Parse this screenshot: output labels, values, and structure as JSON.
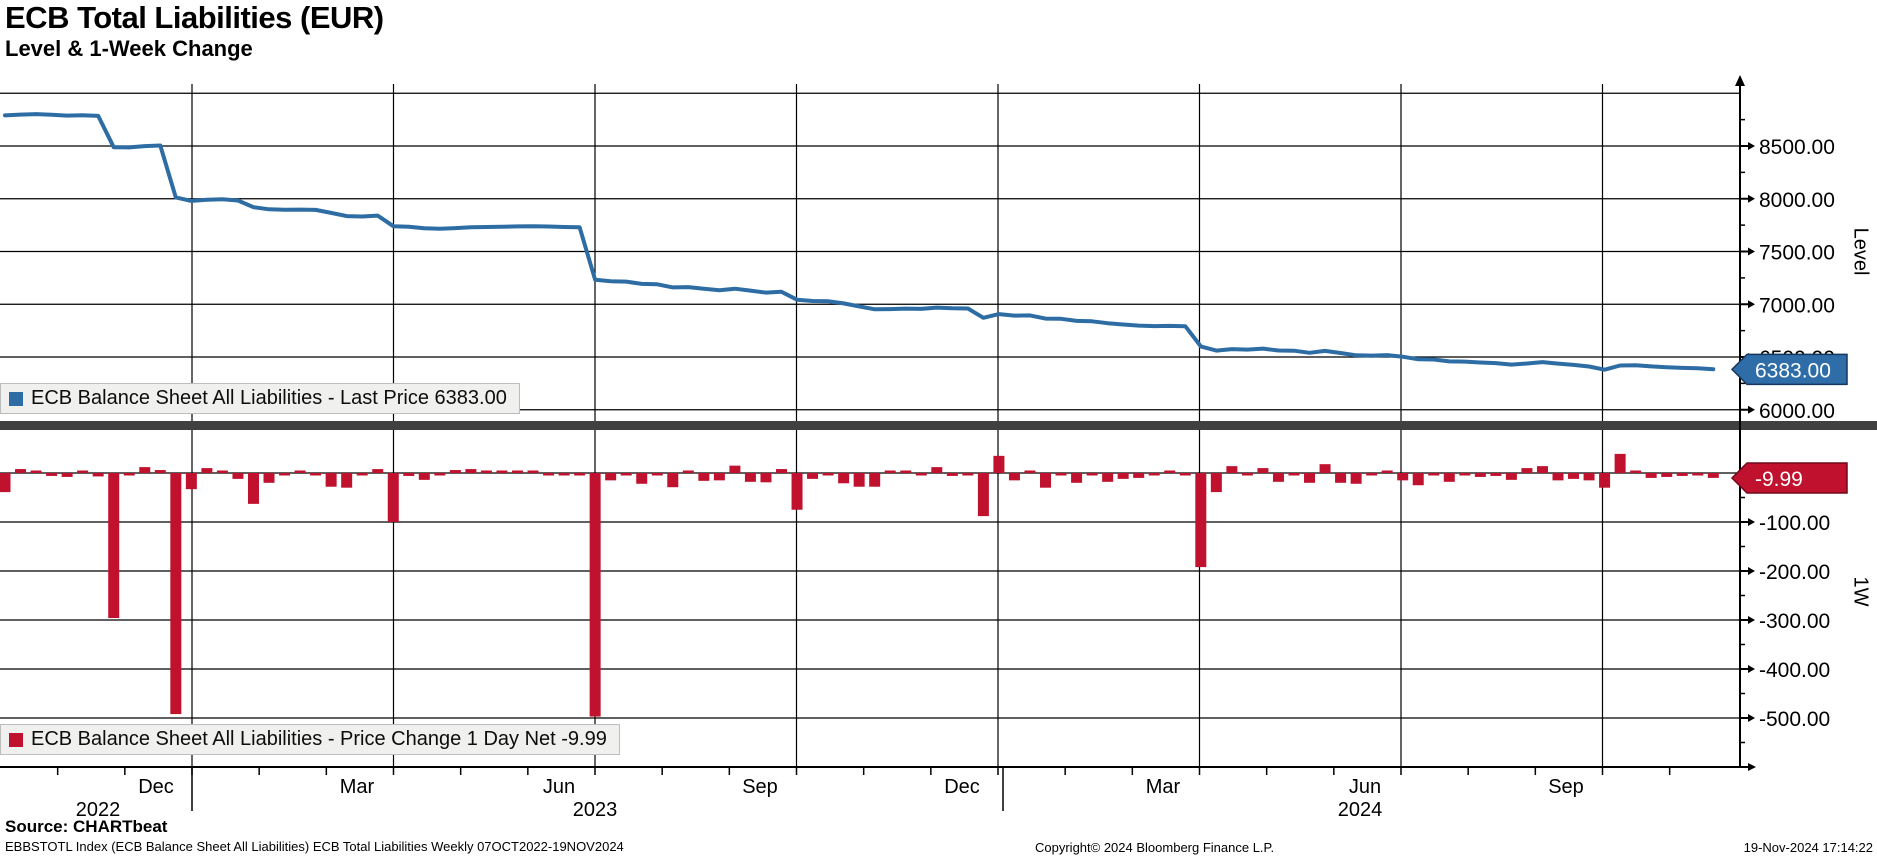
{
  "header": {
    "title": "ECB Total Liabilities (EUR)",
    "subtitle": "Level & 1-Week Change"
  },
  "top_panel": {
    "legend_label": "ECB Balance Sheet All Liabilities - Last Price 6383.00",
    "axis_label": "Level",
    "tag": "6383.00",
    "y_ticks": [
      {
        "value": 8500,
        "label": "8500.00"
      },
      {
        "value": 8000,
        "label": "8000.00"
      },
      {
        "value": 7500,
        "label": "7500.00"
      },
      {
        "value": 7000,
        "label": "7000.00"
      },
      {
        "value": 6500,
        "label": "6500.00"
      },
      {
        "value": 6000,
        "label": "6000.00"
      }
    ],
    "unlabeled_gridlines": [
      9000
    ],
    "minor_ticks": [
      8750,
      8250,
      7750,
      7250,
      6750,
      6250
    ]
  },
  "bottom_panel": {
    "legend_label": "ECB Balance Sheet All Liabilities - Price Change 1 Day Net -9.99",
    "axis_label": "1W",
    "tag": "-9.99",
    "y_ticks": [
      {
        "value": -100,
        "label": "-100.00"
      },
      {
        "value": -200,
        "label": "-200.00"
      },
      {
        "value": -300,
        "label": "-300.00"
      },
      {
        "value": -400,
        "label": "-400.00"
      },
      {
        "value": -500,
        "label": "-500.00"
      }
    ],
    "unlabeled_gridlines": [
      0
    ],
    "minor_ticks": [
      -50,
      -150,
      -250,
      -350,
      -450,
      -550
    ]
  },
  "x_axis": {
    "months": [
      {
        "label": "Dec",
        "x": 156
      },
      {
        "label": "Mar",
        "x": 357
      },
      {
        "label": "Jun",
        "x": 559
      },
      {
        "label": "Sep",
        "x": 760
      },
      {
        "label": "Dec",
        "x": 962
      },
      {
        "label": "Mar",
        "x": 1163
      },
      {
        "label": "Jun",
        "x": 1365
      },
      {
        "label": "Sep",
        "x": 1566
      }
    ],
    "years": [
      {
        "label": "2022",
        "x": 98
      },
      {
        "label": "2023",
        "x": 595
      },
      {
        "label": "2024",
        "x": 1360
      }
    ],
    "year_separators_x": [
      192,
      1003
    ]
  },
  "footer": {
    "source": "Source: CHARTbeat",
    "description": "EBBSTOTL Index (ECB Balance Sheet All Liabilities) ECB Total Liabilities  Weekly 07OCT2022-19NOV2024",
    "copyright": "Copyright© 2024 Bloomberg Finance L.P.",
    "timestamp": "19-Nov-2024 17:14:22"
  },
  "colors": {
    "line_blue": "#2e6da4",
    "tag_blue": "#2e6da8",
    "tag_blue_border": "#17375e",
    "bar_red": "#c0122e",
    "tag_red": "#c0122e",
    "tag_red_border": "#70081c",
    "grid": "#000000",
    "separator": "#404040",
    "legend_bg": "#f0f0ee"
  },
  "chart_data": [
    {
      "type": "line",
      "title": "ECB Balance Sheet All Liabilities - Last Price",
      "panel": "Level",
      "frequency": "Weekly",
      "date_range": "07OCT2022-19NOV2024",
      "last_value": 6383.0,
      "ylim": [
        6000,
        9200
      ],
      "y_ticks": [
        6000,
        6500,
        7000,
        7500,
        8000,
        8500
      ],
      "x_months": [
        "Dec 2022",
        "Mar 2023",
        "Jun 2023",
        "Sep 2023",
        "Dec 2023",
        "Mar 2024",
        "Jun 2024",
        "Sep 2024"
      ],
      "grid": true,
      "legend_position": "bottom-left",
      "values": [
        8790,
        8798,
        8802,
        8796,
        8788,
        8792,
        8785,
        8489,
        8487,
        8499,
        8505,
        8013,
        7980,
        7990,
        7995,
        7983,
        7920,
        7900,
        7895,
        7897,
        7894,
        7866,
        7836,
        7832,
        7840,
        7740,
        7734,
        7720,
        7716,
        7722,
        7730,
        7732,
        7735,
        7738,
        7740,
        7737,
        7732,
        7730,
        7233,
        7218,
        7215,
        7193,
        7189,
        7160,
        7163,
        7147,
        7132,
        7147,
        7129,
        7110,
        7118,
        7043,
        7031,
        7029,
        7008,
        6980,
        6952,
        6954,
        6959,
        6956,
        6968,
        6962,
        6960,
        6872,
        6907,
        6892,
        6894,
        6864,
        6862,
        6842,
        6838,
        6820,
        6808,
        6798,
        6793,
        6795,
        6792,
        6600,
        6561,
        6575,
        6570,
        6580,
        6562,
        6560,
        6540,
        6558,
        6538,
        6516,
        6513,
        6518,
        6503,
        6478,
        6476,
        6458,
        6456,
        6448,
        6442,
        6428,
        6438,
        6452,
        6437,
        6425,
        6410,
        6380,
        6419,
        6421,
        6411,
        6403,
        6397,
        6393,
        6383
      ]
    },
    {
      "type": "bar",
      "title": "ECB Balance Sheet All Liabilities - Price Change 1 Day Net",
      "panel": "1W",
      "frequency": "Weekly",
      "date_range": "07OCT2022-19NOV2024",
      "last_value": -9.99,
      "ylim": [
        -600,
        50
      ],
      "y_ticks": [
        -500,
        -400,
        -300,
        -200,
        -100
      ],
      "grid": true,
      "legend_position": "bottom-left",
      "values": [
        -39,
        8,
        4,
        -6,
        -8,
        4,
        -7,
        -296,
        -2,
        12,
        6,
        -492,
        -33,
        10,
        5,
        -12,
        -63,
        -20,
        -5,
        2,
        -3,
        -28,
        -30,
        -4,
        8,
        -100,
        -6,
        -14,
        -4,
        6,
        8,
        2,
        3,
        3,
        2,
        -3,
        -5,
        -2,
        -497,
        -15,
        -3,
        -22,
        -4,
        -29,
        3,
        -16,
        -15,
        15,
        -18,
        -19,
        8,
        -75,
        -12,
        -2,
        -21,
        -28,
        -28,
        2,
        5,
        -3,
        12,
        -6,
        -2,
        -88,
        35,
        -15,
        2,
        -30,
        -2,
        -20,
        -4,
        -18,
        -12,
        -10,
        -5,
        2,
        -3,
        -192,
        -39,
        14,
        -5,
        10,
        -18,
        -2,
        -20,
        18,
        -20,
        -22,
        -3,
        5,
        -15,
        -25,
        -2,
        -18,
        -2,
        -8,
        -6,
        -14,
        10,
        14,
        -15,
        -12,
        -15,
        -30,
        39,
        2,
        -10,
        -8,
        -6,
        -4,
        -9.99
      ]
    }
  ]
}
